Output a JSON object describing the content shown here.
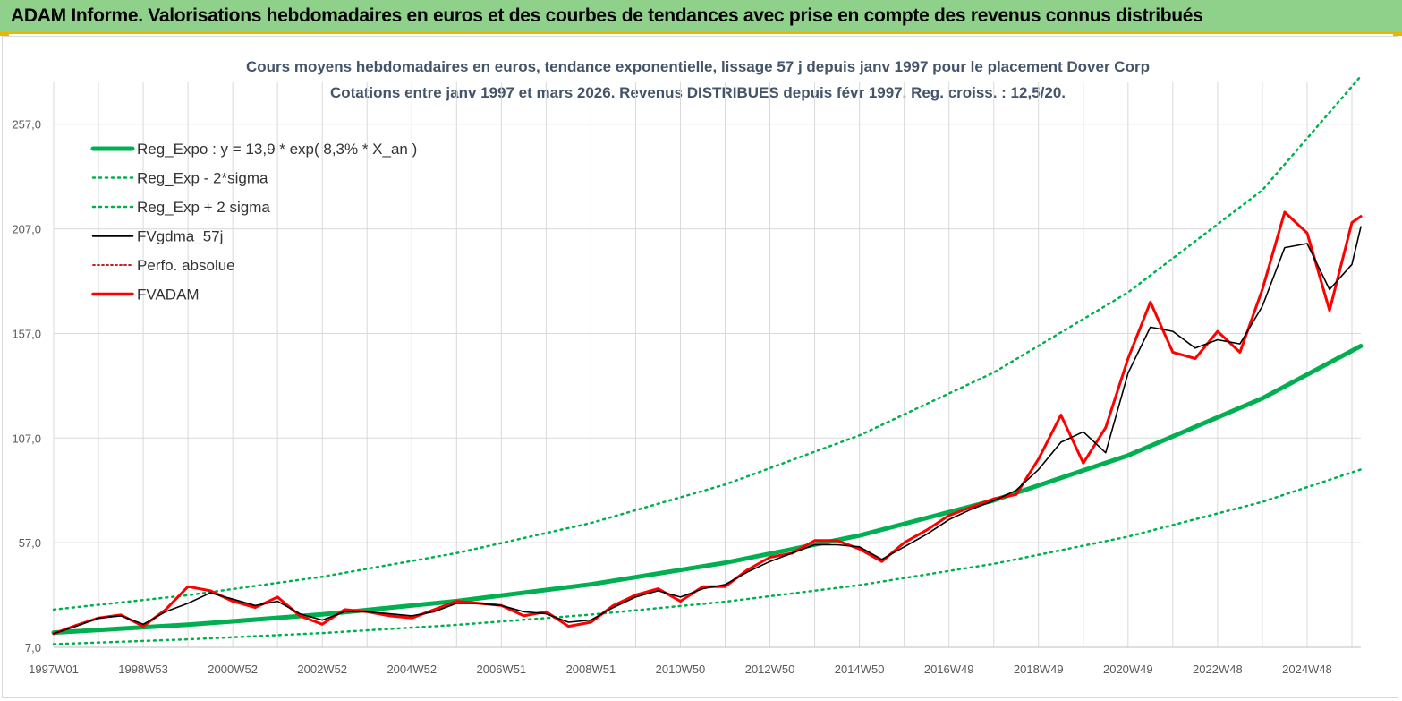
{
  "banner": {
    "title": "ADAM Informe. Valorisations hebdomadaires en euros et des courbes de tendances avec prise en compte des revenus connus distribués"
  },
  "colors": {
    "banner_bg": "#8fd18a",
    "banner_border": "#e8b800",
    "reg_expo": "#00b050",
    "fvgdma": "#000000",
    "perfo": "#c00000",
    "fvadam": "#ff0000",
    "grid": "#d9d9d9",
    "title": "#44546a"
  },
  "chart_data": {
    "type": "line",
    "title": "Cours moyens hebdomadaires en euros, tendance exponentielle, lissage 57 j depuis janv 1997 pour le placement Dover Corp",
    "subtitle": "Cotations entre janv 1997 et mars 2026. Revenus DISTRIBUES depuis févr 1997. Reg. croiss. : 12,5/20.",
    "xlabel": "",
    "ylabel": "",
    "x_range": [
      1997.0,
      2026.2
    ],
    "ylim": [
      7.0,
      277.0
    ],
    "y_ticks": [
      "7,0",
      "57,0",
      "107,0",
      "157,0",
      "207,0",
      "257,0"
    ],
    "y_tick_values": [
      7,
      57,
      107,
      157,
      207,
      257
    ],
    "x_ticks": [
      "1997W01",
      "1998W53",
      "2000W52",
      "2002W52",
      "2004W52",
      "2006W51",
      "2008W51",
      "2010W50",
      "2012W50",
      "2014W50",
      "2016W49",
      "2018W49",
      "2020W49",
      "2022W48",
      "2024W48"
    ],
    "x_tick_values": [
      1997.0,
      1999.0,
      2001.0,
      2003.0,
      2005.0,
      2007.0,
      2009.0,
      2011.0,
      2013.0,
      2015.0,
      2017.0,
      2019.0,
      2021.0,
      2023.0,
      2025.0
    ],
    "grid": true,
    "legend_position": "top-left",
    "legend": [
      "Reg_Expo : y = 13,9 * exp( 8,3% *  X_an )",
      "Reg_Exp - 2*sigma",
      "Reg_Exp + 2 sigma",
      "FVgdma_57j",
      "Perfo. absolue",
      "FVADAM"
    ],
    "series": [
      {
        "name": "Reg_Expo : y = 13,9 * exp( 8,3% *  X_an )",
        "style": "solid-thick",
        "x": [
          1997,
          2000,
          2003,
          2006,
          2009,
          2012,
          2015,
          2018,
          2021,
          2024,
          2026.2
        ],
        "values": [
          14,
          17.8,
          22.7,
          29.1,
          37.1,
          47.4,
          60.4,
          77.2,
          98.7,
          126.0,
          151.0
        ]
      },
      {
        "name": "Reg_Exp - 2*sigma",
        "style": "dotted",
        "x": [
          1997,
          2000,
          2003,
          2006,
          2009,
          2012,
          2015,
          2018,
          2021,
          2024,
          2026.2
        ],
        "values": [
          8.5,
          10.8,
          13.8,
          17.7,
          22.6,
          28.8,
          36.7,
          46.9,
          59.9,
          76.5,
          92.0
        ]
      },
      {
        "name": "Reg_Exp + 2 sigma",
        "style": "dotted",
        "x": [
          1997,
          2000,
          2003,
          2006,
          2009,
          2012,
          2015,
          2018,
          2021,
          2024,
          2026.2
        ],
        "values": [
          25.0,
          31.9,
          40.7,
          52.0,
          66.4,
          84.8,
          108.3,
          138.3,
          176.6,
          225.5,
          280.0
        ]
      },
      {
        "name": "FVgdma_57j",
        "style": "solid",
        "x": [
          1997.0,
          1997.5,
          1998.0,
          1998.5,
          1999.0,
          1999.5,
          2000.0,
          2000.5,
          2001.0,
          2001.5,
          2002.0,
          2002.5,
          2003.0,
          2003.5,
          2004.0,
          2004.5,
          2005.0,
          2005.5,
          2006.0,
          2006.5,
          2007.0,
          2007.5,
          2008.0,
          2008.5,
          2009.0,
          2009.5,
          2010.0,
          2010.5,
          2011.0,
          2011.5,
          2012.0,
          2012.5,
          2013.0,
          2013.5,
          2014.0,
          2014.5,
          2015.0,
          2015.5,
          2016.0,
          2016.5,
          2017.0,
          2017.5,
          2018.0,
          2018.5,
          2019.0,
          2019.5,
          2020.0,
          2020.5,
          2021.0,
          2021.5,
          2022.0,
          2022.5,
          2023.0,
          2023.5,
          2024.0,
          2024.5,
          2025.0,
          2025.5,
          2026.0,
          2026.2
        ],
        "values": [
          13.5,
          17.0,
          21.0,
          22.0,
          18.0,
          24.0,
          28.0,
          33.0,
          30.0,
          27.0,
          29.0,
          23.0,
          20.0,
          24.0,
          24.0,
          23.0,
          22.0,
          24.0,
          28.0,
          28.0,
          27.0,
          24.0,
          23.0,
          19.0,
          20.0,
          26.0,
          31.0,
          34.0,
          31.0,
          35.0,
          37.0,
          43.0,
          48.0,
          52.0,
          56.0,
          56.0,
          55.0,
          49.0,
          55.0,
          61.0,
          68.0,
          73.0,
          77.0,
          82.0,
          92.0,
          105.0,
          110.0,
          100.0,
          138.0,
          160.0,
          158.0,
          150.0,
          154.0,
          152.0,
          170.0,
          198.0,
          200.0,
          178.0,
          190.0,
          208.0
        ]
      },
      {
        "name": "FVADAM",
        "style": "solid-thick",
        "x": [
          1997.0,
          1997.5,
          1998.0,
          1998.5,
          1999.0,
          1999.5,
          2000.0,
          2000.5,
          2001.0,
          2001.5,
          2002.0,
          2002.5,
          2003.0,
          2003.5,
          2004.0,
          2004.5,
          2005.0,
          2005.5,
          2006.0,
          2006.5,
          2007.0,
          2007.5,
          2008.0,
          2008.5,
          2009.0,
          2009.5,
          2010.0,
          2010.5,
          2011.0,
          2011.5,
          2012.0,
          2012.5,
          2013.0,
          2013.5,
          2014.0,
          2014.5,
          2015.0,
          2015.5,
          2016.0,
          2016.5,
          2017.0,
          2017.5,
          2018.0,
          2018.5,
          2019.0,
          2019.5,
          2020.0,
          2020.5,
          2021.0,
          2021.5,
          2022.0,
          2022.5,
          2023.0,
          2023.5,
          2024.0,
          2024.5,
          2025.0,
          2025.5,
          2026.0,
          2026.2
        ],
        "values": [
          13.5,
          17.5,
          21.0,
          22.5,
          17.0,
          25.0,
          36.0,
          34.0,
          29.0,
          26.0,
          31.0,
          22.0,
          18.0,
          25.0,
          24.0,
          22.0,
          21.0,
          25.0,
          29.0,
          28.0,
          27.0,
          22.0,
          24.0,
          17.0,
          19.0,
          27.0,
          32.0,
          35.0,
          29.0,
          36.0,
          36.0,
          44.0,
          50.0,
          52.0,
          58.0,
          58.0,
          54.0,
          48.0,
          57.0,
          63.0,
          70.0,
          74.0,
          78.0,
          80.0,
          97.0,
          118.0,
          95.0,
          112.0,
          145.0,
          172.0,
          148.0,
          145.0,
          158.0,
          148.0,
          178.0,
          215.0,
          205.0,
          168.0,
          210.0,
          213.0
        ]
      }
    ]
  }
}
